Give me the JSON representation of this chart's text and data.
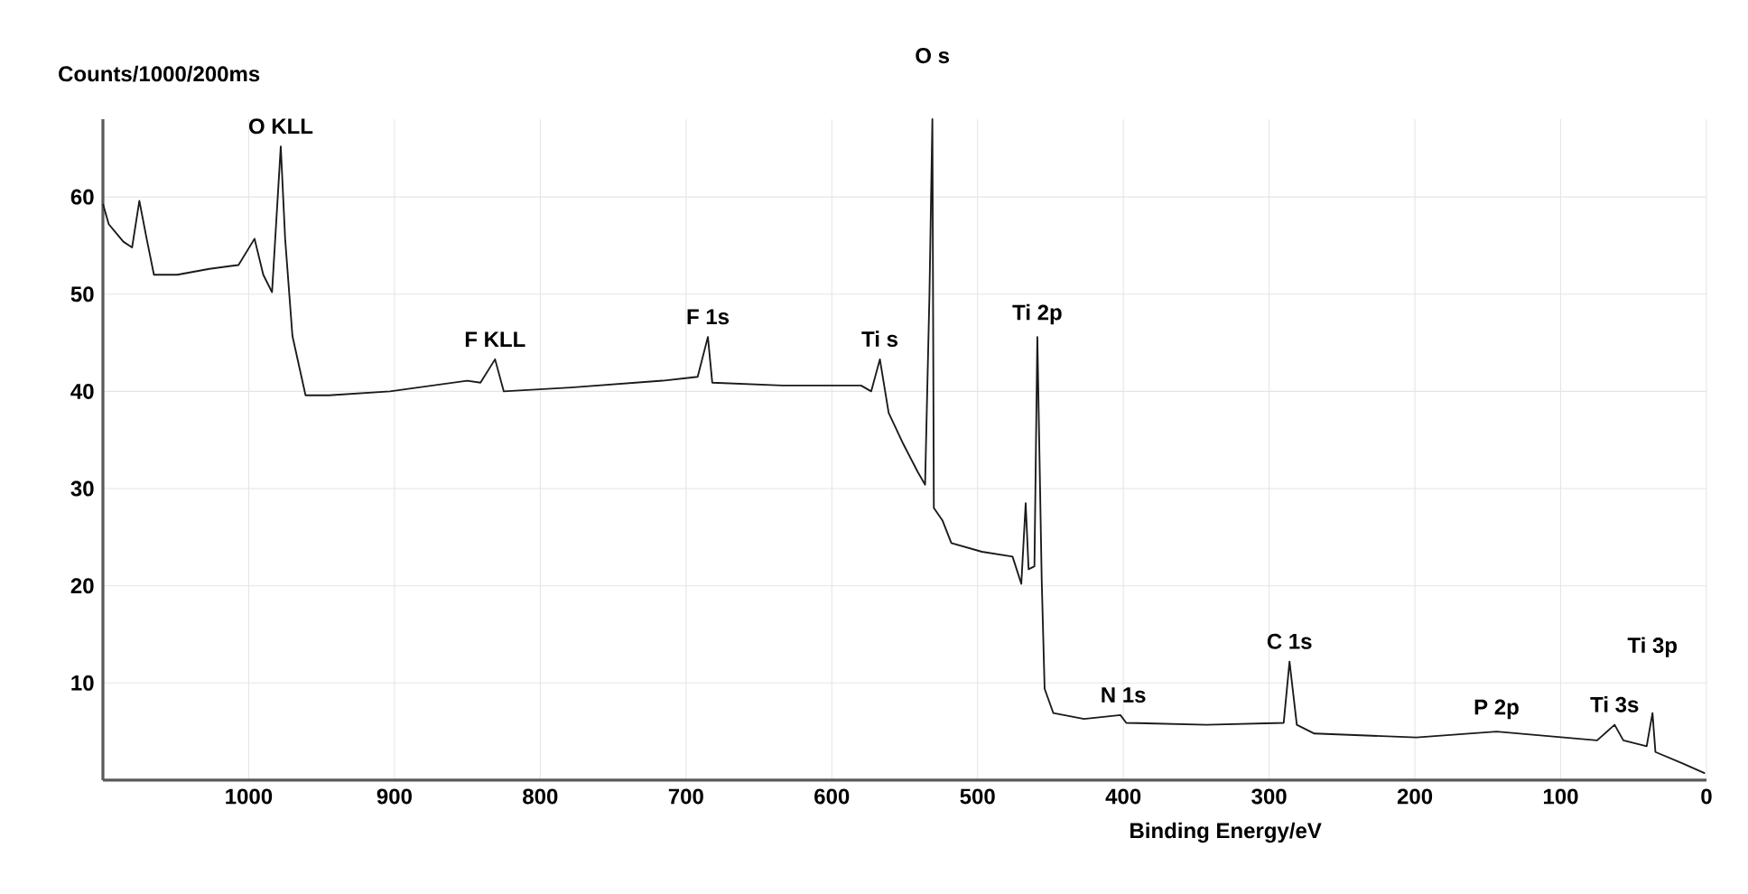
{
  "chart_data": {
    "type": "line",
    "xlabel": "Binding Energy/eV",
    "ylabel": "Counts/1000/200ms",
    "xlim": [
      1100,
      0
    ],
    "ylim": [
      0,
      68
    ],
    "xticks": [
      1000,
      900,
      800,
      700,
      600,
      500,
      400,
      300,
      200,
      100,
      0
    ],
    "yticks": [
      10,
      20,
      30,
      40,
      50,
      60
    ],
    "grid": true,
    "marker": "none",
    "line_style": "solid",
    "series": [
      {
        "color": "#1a1a1a",
        "x": [
          1100,
          1096,
          1086,
          1080,
          1075,
          1070,
          1065,
          1049,
          1027,
          1007,
          996,
          990,
          984,
          978,
          975,
          970,
          961,
          945,
          903,
          850,
          841,
          831,
          825,
          779,
          716,
          692,
          685,
          682,
          634,
          580,
          573,
          567,
          561,
          551,
          541,
          536,
          533,
          531,
          530,
          524,
          518,
          497,
          476,
          470,
          467,
          465,
          461,
          459,
          456,
          454,
          448,
          427,
          402,
          398,
          343,
          290,
          286,
          281,
          269,
          199,
          144,
          75,
          63,
          57,
          41,
          37,
          35,
          16,
          1
        ],
        "values": [
          59.3,
          57.2,
          55.4,
          54.8,
          59.6,
          55.7,
          52,
          52,
          52.6,
          53,
          55.7,
          52,
          50.2,
          65.2,
          55.7,
          45.7,
          39.6,
          39.6,
          40,
          41.1,
          40.9,
          43.3,
          40,
          40.4,
          41.1,
          41.5,
          45.6,
          40.9,
          40.6,
          40.6,
          40,
          43.3,
          37.8,
          34.6,
          31.7,
          30.4,
          50,
          68,
          28,
          26.7,
          24.4,
          23.5,
          23,
          20.2,
          28.5,
          21.7,
          22,
          45.6,
          20.6,
          9.4,
          6.9,
          6.3,
          6.7,
          5.9,
          5.7,
          5.9,
          12.2,
          5.7,
          4.8,
          4.4,
          5,
          4.1,
          5.7,
          4.1,
          3.5,
          6.9,
          2.9,
          1.7,
          0.7
        ]
      }
    ],
    "annotations": [
      {
        "text": "O KLL",
        "x": 978,
        "y": 65.2
      },
      {
        "text": "F KLL",
        "x": 831,
        "y": 43.3
      },
      {
        "text": "F 1s",
        "x": 685,
        "y": 45.6
      },
      {
        "text": "Ti s",
        "x": 567,
        "y": 43.3
      },
      {
        "text": "O s",
        "x": 531,
        "y": 68
      },
      {
        "text": "Ti 2p",
        "x": 459,
        "y": 45.6
      },
      {
        "text": "N 1s",
        "x": 400,
        "y": 6.7
      },
      {
        "text": "C 1s",
        "x": 286,
        "y": 12.2
      },
      {
        "text": "P 2p",
        "x": 144,
        "y": 5
      },
      {
        "text": "Ti 3s",
        "x": 63,
        "y": 5.7
      },
      {
        "text": "Ti 3p",
        "x": 37,
        "y": 6.9
      }
    ]
  }
}
